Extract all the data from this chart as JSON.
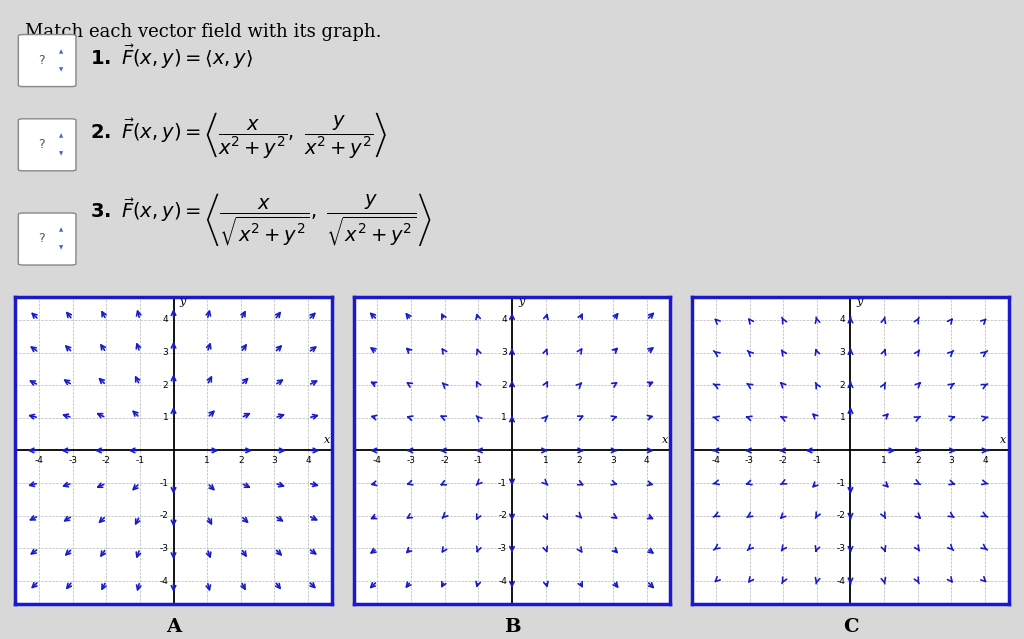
{
  "title": "Match each vector field with its graph.",
  "arrow_color": "#1a1acc",
  "border_color": "#1a1acc",
  "bg_color": "#ffffff",
  "fig_bg_color": "#d8d8d8",
  "grid_color": "#aaaaaa",
  "axis_color": "#000000",
  "plots": [
    {
      "field": "F3_unit",
      "label": "A"
    },
    {
      "field": "F1_linear",
      "label": "B"
    },
    {
      "field": "F2_inverse_sq",
      "label": "C"
    }
  ],
  "xlim": [
    -4.7,
    4.7
  ],
  "ylim": [
    -4.7,
    4.7
  ]
}
